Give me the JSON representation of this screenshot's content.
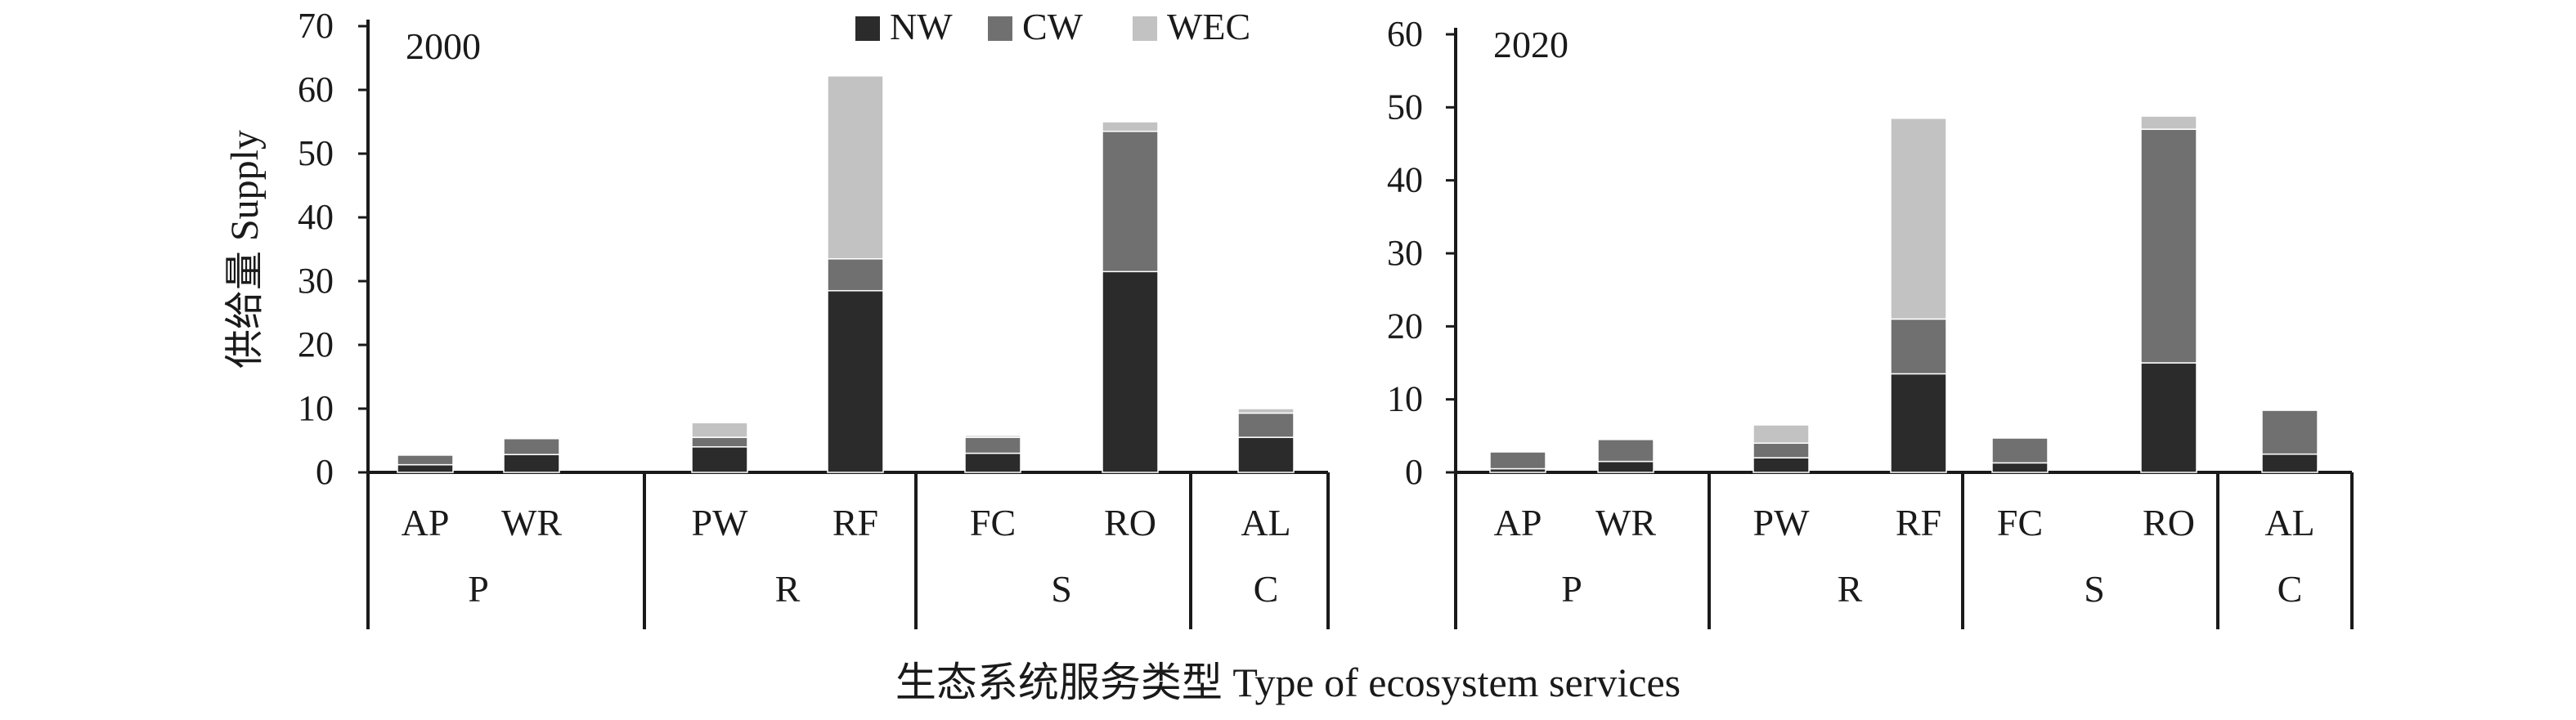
{
  "colors": {
    "NW": "#2b2b2b",
    "CW": "#707070",
    "WEC": "#c2c2c2",
    "axis": "#1a1a1a"
  },
  "legend": [
    {
      "key": "NW",
      "label": "NW"
    },
    {
      "key": "CW",
      "label": "CW"
    },
    {
      "key": "WEC",
      "label": "WEC"
    }
  ],
  "y_axis_label": "供给量 Supply",
  "x_axis_label": "生态系统服务类型 Type of ecosystem services",
  "chart_data": [
    {
      "type": "bar",
      "stacked": true,
      "title": "2000",
      "ylim": [
        0,
        70
      ],
      "yticks": [
        0,
        10,
        20,
        30,
        40,
        50,
        60,
        70
      ],
      "categories": [
        "AP",
        "WR",
        "PW",
        "RF",
        "FC",
        "RO",
        "AL"
      ],
      "groups": [
        {
          "label": "P",
          "categories": [
            "AP",
            "WR"
          ]
        },
        {
          "label": "R",
          "categories": [
            "PW",
            "RF"
          ]
        },
        {
          "label": "S",
          "categories": [
            "FC",
            "RO"
          ]
        },
        {
          "label": "C",
          "categories": [
            "AL"
          ]
        }
      ],
      "series": [
        {
          "name": "NW",
          "values": [
            1.2,
            2.8,
            4.0,
            28.5,
            3.0,
            31.5,
            5.5
          ]
        },
        {
          "name": "CW",
          "values": [
            1.5,
            2.5,
            1.5,
            5.0,
            2.5,
            22.0,
            3.8
          ]
        },
        {
          "name": "WEC",
          "values": [
            0.0,
            0.2,
            2.3,
            28.7,
            0.3,
            1.5,
            0.7
          ]
        }
      ]
    },
    {
      "type": "bar",
      "stacked": true,
      "title": "2020",
      "ylim": [
        0,
        60
      ],
      "yticks": [
        0,
        10,
        20,
        30,
        40,
        50,
        60
      ],
      "categories": [
        "AP",
        "WR",
        "PW",
        "RF",
        "FC",
        "RO",
        "AL"
      ],
      "groups": [
        {
          "label": "P",
          "categories": [
            "AP",
            "WR"
          ]
        },
        {
          "label": "R",
          "categories": [
            "PW",
            "RF"
          ]
        },
        {
          "label": "S",
          "categories": [
            "FC",
            "RO"
          ]
        },
        {
          "label": "C",
          "categories": [
            "AL"
          ]
        }
      ],
      "series": [
        {
          "name": "NW",
          "values": [
            0.5,
            1.5,
            2.0,
            13.5,
            1.3,
            15.0,
            2.5
          ]
        },
        {
          "name": "CW",
          "values": [
            2.3,
            3.0,
            2.0,
            7.5,
            3.4,
            32.0,
            6.0
          ]
        },
        {
          "name": "WEC",
          "values": [
            0.0,
            0.0,
            2.5,
            27.5,
            0.0,
            1.8,
            0.0
          ]
        }
      ]
    }
  ]
}
